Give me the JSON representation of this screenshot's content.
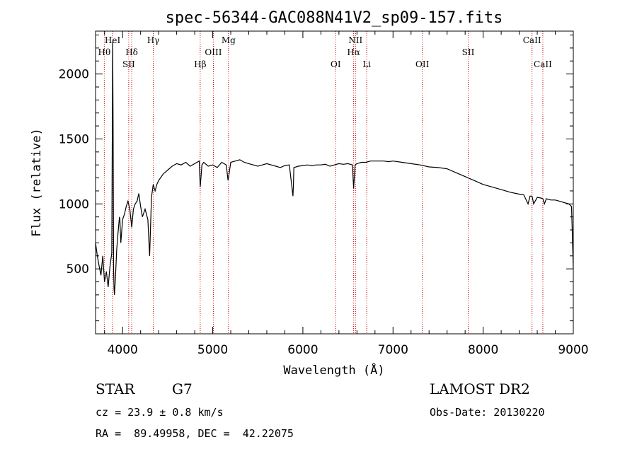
{
  "title": "spec-56344-GAC088N41V2_sp09-157.fits",
  "chart_data": {
    "type": "line",
    "xlabel": "Wavelength (Å)",
    "ylabel": "Flux (relative)",
    "xlim": [
      3700,
      9000
    ],
    "ylim": [
      0,
      2330
    ],
    "xticks": [
      4000,
      5000,
      6000,
      7000,
      8000,
      9000
    ],
    "yticks": [
      500,
      1000,
      1500,
      2000
    ],
    "grid": false,
    "series": [
      {
        "color": "#000000",
        "x": [
          3700,
          3720,
          3740,
          3760,
          3780,
          3800,
          3820,
          3840,
          3860,
          3880,
          3890,
          3895,
          3900,
          3905,
          3910,
          3920,
          3935,
          3950,
          3965,
          3970,
          3980,
          4000,
          4020,
          4040,
          4060,
          4080,
          4101,
          4120,
          4140,
          4160,
          4180,
          4200,
          4220,
          4250,
          4280,
          4300,
          4320,
          4340,
          4360,
          4380,
          4400,
          4420,
          4450,
          4500,
          4550,
          4600,
          4650,
          4700,
          4750,
          4800,
          4850,
          4861,
          4880,
          4900,
          4950,
          5000,
          5050,
          5100,
          5150,
          5170,
          5183,
          5200,
          5250,
          5300,
          5350,
          5400,
          5450,
          5500,
          5550,
          5600,
          5650,
          5700,
          5750,
          5800,
          5850,
          5890,
          5895,
          5900,
          5950,
          6000,
          6050,
          6100,
          6150,
          6200,
          6250,
          6300,
          6350,
          6400,
          6450,
          6500,
          6550,
          6563,
          6580,
          6600,
          6650,
          6700,
          6750,
          6800,
          6850,
          6900,
          6950,
          7000,
          7100,
          7200,
          7300,
          7400,
          7500,
          7600,
          7700,
          7800,
          7900,
          8000,
          8100,
          8200,
          8300,
          8400,
          8450,
          8498,
          8520,
          8542,
          8560,
          8600,
          8640,
          8662,
          8680,
          8700,
          8750,
          8800,
          8850,
          8900,
          8950,
          8980,
          9000
        ],
        "y": [
          700,
          600,
          520,
          450,
          600,
          400,
          480,
          360,
          520,
          620,
          2250,
          1600,
          500,
          350,
          300,
          420,
          650,
          780,
          900,
          880,
          700,
          880,
          920,
          980,
          1020,
          960,
          820,
          960,
          1000,
          1020,
          1080,
          980,
          900,
          960,
          880,
          600,
          1050,
          1150,
          1100,
          1150,
          1180,
          1200,
          1230,
          1260,
          1290,
          1310,
          1300,
          1320,
          1290,
          1310,
          1330,
          1130,
          1300,
          1320,
          1290,
          1300,
          1280,
          1320,
          1300,
          1180,
          1240,
          1320,
          1330,
          1340,
          1320,
          1310,
          1300,
          1290,
          1300,
          1310,
          1300,
          1290,
          1280,
          1295,
          1300,
          1060,
          1150,
          1280,
          1290,
          1295,
          1300,
          1295,
          1300,
          1300,
          1305,
          1290,
          1300,
          1310,
          1305,
          1310,
          1300,
          1120,
          1300,
          1310,
          1320,
          1320,
          1330,
          1330,
          1330,
          1330,
          1325,
          1330,
          1320,
          1310,
          1300,
          1285,
          1280,
          1270,
          1240,
          1210,
          1180,
          1150,
          1130,
          1110,
          1090,
          1075,
          1070,
          1000,
          1060,
          1060,
          1000,
          1050,
          1045,
          1040,
          1000,
          1040,
          1030,
          1030,
          1020,
          1010,
          1000,
          980,
          500
        ]
      }
    ],
    "spectral_lines": [
      {
        "label": "Hθ",
        "wavelength": 3797,
        "row": 2
      },
      {
        "label": "HeI",
        "wavelength": 3889,
        "row": 1
      },
      {
        "label": "Hδ",
        "wavelength": 4101,
        "row": 2
      },
      {
        "label": "SII",
        "wavelength": 4068,
        "row": 3
      },
      {
        "label": "Hγ",
        "wavelength": 4340,
        "row": 1
      },
      {
        "label": "Hβ",
        "wavelength": 4861,
        "row": 3
      },
      {
        "label": "OIII",
        "wavelength": 5007,
        "row": 2
      },
      {
        "label": "Mg",
        "wavelength": 5175,
        "row": 1
      },
      {
        "label": "OI",
        "wavelength": 6364,
        "row": 3
      },
      {
        "label": "NII",
        "wavelength": 6584,
        "row": 1
      },
      {
        "label": "Hα",
        "wavelength": 6563,
        "row": 2
      },
      {
        "label": "Li",
        "wavelength": 6708,
        "row": 3
      },
      {
        "label": "OII",
        "wavelength": 7325,
        "row": 3
      },
      {
        "label": "SII",
        "wavelength": 7834,
        "row": 2
      },
      {
        "label": "CaII",
        "wavelength": 8542,
        "row": 1
      },
      {
        "label": "CaII",
        "wavelength": 8662,
        "row": 3
      }
    ],
    "line_marker_color": "#cc0000"
  },
  "info": {
    "object_type": "STAR",
    "subclass": "G7",
    "survey": "LAMOST DR2",
    "cz": "cz = 23.9 ± 0.8 km/s",
    "obs_date": "Obs-Date: 20130220",
    "coords": "RA =  89.49958, DEC =  42.22075"
  }
}
